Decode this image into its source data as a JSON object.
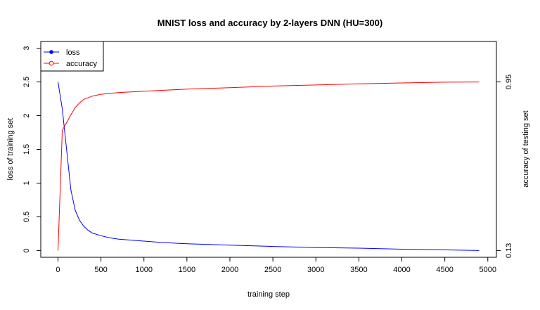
{
  "chart_data": {
    "type": "line",
    "title": "MNIST loss and accuracy by 2-layers DNN (HU=300)",
    "xlabel": "training step",
    "ylabel_left": "loss of training set",
    "ylabel_right": "accuracy of testing set",
    "xlim": [
      -200,
      5100
    ],
    "ylim_left": [
      -0.1,
      3.1
    ],
    "ylim_right_ticks": [
      0.13,
      0.95
    ],
    "x_ticks": [
      0,
      500,
      1000,
      1500,
      2000,
      2500,
      3000,
      3500,
      4000,
      4500,
      5000
    ],
    "y_ticks_left": [
      0,
      0.5,
      1,
      1.5,
      2,
      2.5,
      3
    ],
    "y_tick_labels_left": [
      "0",
      "0.5",
      "1",
      "1.5",
      "2",
      "2.5",
      "3"
    ],
    "y_ticks_right": [
      0.13,
      0.95
    ],
    "y_tick_labels_right": [
      "0.13",
      "0.95"
    ],
    "legend_position": "top-left",
    "series": [
      {
        "name": "loss",
        "axis": "left",
        "color": "#0000ff",
        "x": [
          0,
          50,
          100,
          150,
          200,
          250,
          300,
          350,
          400,
          500,
          600,
          700,
          800,
          1000,
          1200,
          1500,
          2000,
          2500,
          3000,
          3500,
          4000,
          4500,
          4900
        ],
        "y": [
          2.5,
          2.1,
          1.5,
          0.9,
          0.6,
          0.45,
          0.36,
          0.3,
          0.26,
          0.22,
          0.19,
          0.17,
          0.16,
          0.14,
          0.12,
          0.1,
          0.08,
          0.06,
          0.045,
          0.035,
          0.02,
          0.01,
          0.0
        ]
      },
      {
        "name": "accuracy",
        "axis": "right",
        "color": "#ff0000",
        "x": [
          0,
          50,
          100,
          150,
          200,
          250,
          300,
          400,
          500,
          700,
          1000,
          1500,
          2000,
          2500,
          3000,
          3500,
          4000,
          4500,
          4900
        ],
        "y": [
          0.13,
          0.715,
          0.752,
          0.79,
          0.825,
          0.848,
          0.865,
          0.881,
          0.89,
          0.898,
          0.905,
          0.915,
          0.922,
          0.93,
          0.935,
          0.941,
          0.945,
          0.949,
          0.95
        ]
      }
    ]
  }
}
